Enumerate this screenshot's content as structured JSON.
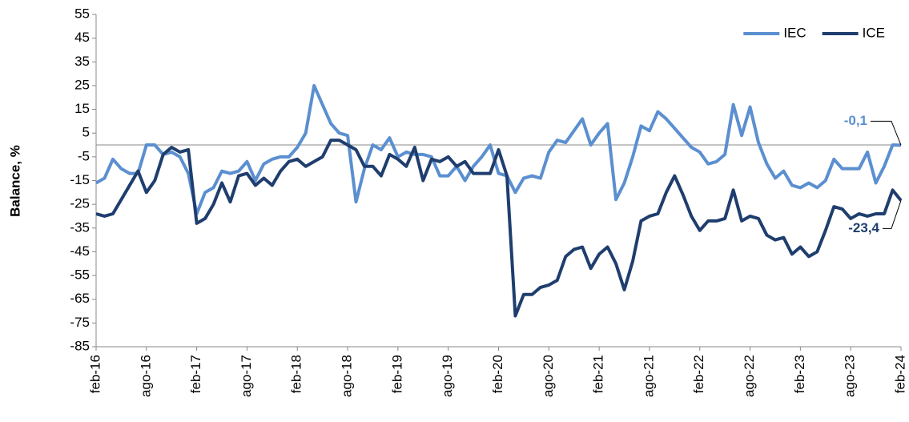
{
  "chart_data": {
    "type": "line",
    "y_label": "Balance, %",
    "categories": [
      "feb-16",
      null,
      null,
      null,
      null,
      null,
      "ago-16",
      null,
      null,
      null,
      null,
      null,
      "feb-17",
      null,
      null,
      null,
      null,
      null,
      "ago-17",
      null,
      null,
      null,
      null,
      null,
      "feb-18",
      null,
      null,
      null,
      null,
      null,
      "ago-18",
      null,
      null,
      null,
      null,
      null,
      "feb-19",
      null,
      null,
      null,
      null,
      null,
      "ago-19",
      null,
      null,
      null,
      null,
      null,
      "feb-20",
      null,
      null,
      null,
      null,
      null,
      "ago-20",
      null,
      null,
      null,
      null,
      null,
      "feb-21",
      null,
      null,
      null,
      null,
      null,
      "ago-21",
      null,
      null,
      null,
      null,
      null,
      "feb-22",
      null,
      null,
      null,
      null,
      null,
      "ago-22",
      null,
      null,
      null,
      null,
      null,
      "feb-23",
      null,
      null,
      null,
      null,
      null,
      "ago-23",
      null,
      null,
      null,
      null,
      null,
      "feb-24"
    ],
    "series": [
      {
        "name": "IEC",
        "color": "#5b8fd0",
        "values": [
          -16,
          -14,
          -6,
          -10,
          -12,
          -12,
          0,
          0,
          -4,
          -3,
          -5,
          -12,
          -29,
          -20,
          -18,
          -11,
          -12,
          -11,
          -7,
          -15,
          -8,
          -6,
          -5,
          -5,
          -1,
          5,
          25,
          17,
          9,
          5,
          4,
          -24,
          -10,
          0,
          -2,
          3,
          -5,
          -3,
          -4,
          -4,
          -5,
          -13,
          -13,
          -9,
          -15,
          -9,
          -5,
          0,
          -12,
          -13,
          -20,
          -14,
          -13,
          -14,
          -3,
          2,
          1,
          6,
          11,
          0,
          5,
          9,
          -23,
          -16,
          -5,
          8,
          6,
          14,
          11,
          7,
          3,
          -1,
          -3,
          -8,
          -7,
          -4,
          17,
          4,
          16,
          1,
          -8,
          -14,
          -11,
          -17,
          -18,
          -16,
          -18,
          -15,
          -6,
          -10,
          -10,
          -10,
          -3,
          -16,
          -9,
          0,
          -0.1
        ],
        "value_labels": [
          null,
          null,
          null,
          null,
          null,
          null,
          null,
          null,
          null,
          null,
          null,
          null,
          null,
          null,
          null,
          null,
          null,
          null,
          null,
          null,
          null,
          null,
          null,
          null,
          null,
          null,
          null,
          null,
          null,
          null,
          null,
          null,
          null,
          null,
          null,
          null,
          null,
          null,
          null,
          null,
          null,
          null,
          null,
          null,
          null,
          null,
          null,
          null,
          null,
          null,
          null,
          null,
          null,
          null,
          null,
          null,
          null,
          null,
          null,
          null,
          null,
          null,
          null,
          null,
          null,
          null,
          null,
          null,
          null,
          null,
          null,
          null,
          null,
          null,
          null,
          null,
          null,
          null,
          null,
          null,
          null,
          null,
          null,
          null,
          null,
          null,
          null,
          null,
          null,
          null,
          null,
          null,
          null,
          null,
          null,
          null,
          "-0,1"
        ]
      },
      {
        "name": "ICE",
        "color": "#1f3e6e",
        "values": [
          -29,
          -30,
          -29,
          -23,
          -17,
          -11,
          -20,
          -15,
          -4,
          -1,
          -3,
          -2,
          -33,
          -31,
          -25,
          -16,
          -24,
          -13,
          -12,
          -17,
          -14,
          -17,
          -11,
          -7,
          -6,
          -9,
          -7,
          -5,
          2,
          2,
          0,
          -2,
          -9,
          -9,
          -13,
          -4,
          -6,
          -9,
          -1,
          -15,
          -6,
          -7,
          -5,
          -9,
          -7,
          -12,
          -12,
          -12,
          -2,
          -13,
          -72,
          -63,
          -63,
          -60,
          -59,
          -57,
          -47,
          -44,
          -43,
          -52,
          -46,
          -43,
          -50,
          -61,
          -49,
          -32,
          -30,
          -29,
          -20,
          -13,
          -21,
          -30,
          -36,
          -32,
          -32,
          -31,
          -19,
          -32,
          -30,
          -31,
          -38,
          -40,
          -39,
          -46,
          -43,
          -47,
          -45,
          -36,
          -26,
          -27,
          -31,
          -29,
          -30,
          -29,
          -29,
          -19,
          -23.4
        ],
        "value_labels": [
          null,
          null,
          null,
          null,
          null,
          null,
          null,
          null,
          null,
          null,
          null,
          null,
          null,
          null,
          null,
          null,
          null,
          null,
          null,
          null,
          null,
          null,
          null,
          null,
          null,
          null,
          null,
          null,
          null,
          null,
          null,
          null,
          null,
          null,
          null,
          null,
          null,
          null,
          null,
          null,
          null,
          null,
          null,
          null,
          null,
          null,
          null,
          null,
          null,
          null,
          null,
          null,
          null,
          null,
          null,
          null,
          null,
          null,
          null,
          null,
          null,
          null,
          null,
          null,
          null,
          null,
          null,
          null,
          null,
          null,
          null,
          null,
          null,
          null,
          null,
          null,
          null,
          null,
          null,
          null,
          null,
          null,
          null,
          null,
          null,
          null,
          null,
          null,
          null,
          null,
          null,
          null,
          null,
          null,
          null,
          null,
          "-23,4"
        ]
      }
    ],
    "ylim": [
      -85,
      55
    ],
    "yticks": [
      -85,
      -75,
      -65,
      -55,
      -45,
      -35,
      -25,
      -15,
      -5,
      5,
      15,
      25,
      35,
      45,
      55
    ],
    "legend": "top-right"
  }
}
